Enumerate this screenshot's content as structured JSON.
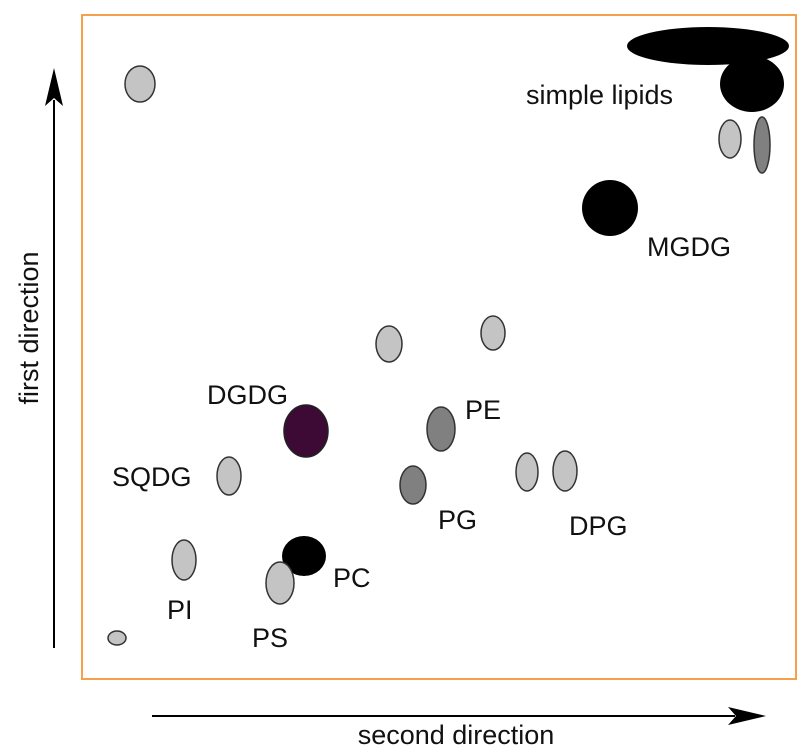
{
  "labels": {
    "simple_lipids": "simple lipids",
    "mgdg": "MGDG",
    "dgdg": "DGDG",
    "pe": "PE",
    "sqdg": "SQDG",
    "pg": "PG",
    "dpg": "DPG",
    "pc": "PC",
    "pi": "PI",
    "ps": "PS"
  },
  "axes": {
    "y_label": "first direction",
    "x_label": "second direction"
  },
  "colors": {
    "frame": "#f5a04a",
    "axis": "#000000",
    "spot_light": "#c4c4c4",
    "spot_medium": "#808080",
    "spot_dark": "#000000",
    "spot_purple": "#3d0a35",
    "spot_outline": "#333333"
  }
}
